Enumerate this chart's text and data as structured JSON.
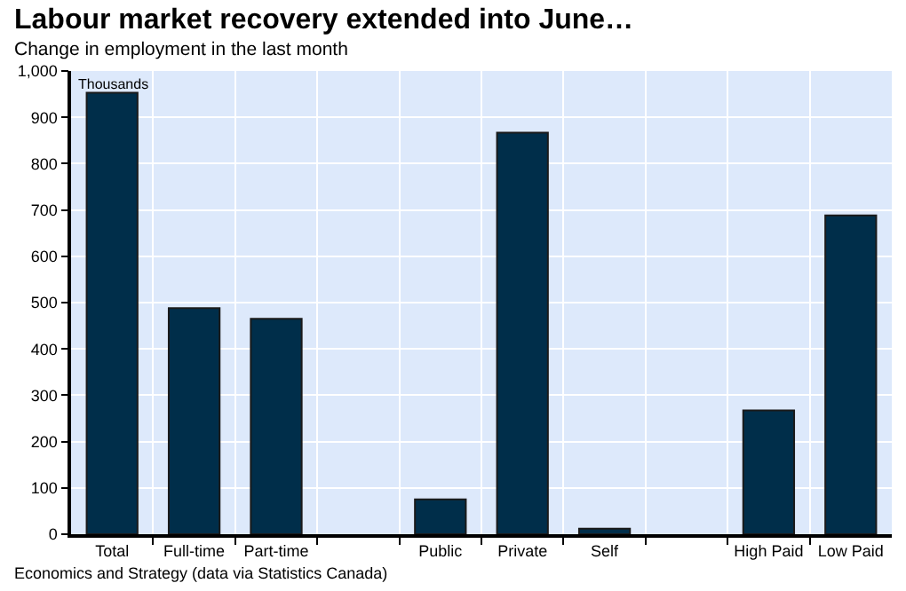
{
  "chart_data": {
    "type": "bar",
    "title": "Labour market recovery extended into June…",
    "subtitle": "Change in employment in the last month",
    "ylabel": "Thousands",
    "categories": [
      "Total",
      "Full-time",
      "Part-time",
      null,
      "Public",
      "Private",
      "Self",
      null,
      "High Paid",
      "Low Paid"
    ],
    "values": [
      953,
      488,
      465,
      null,
      75,
      867,
      12,
      null,
      267,
      688
    ],
    "color": "#002e4a",
    "ylim": [
      0,
      1000
    ],
    "yticks": [
      0,
      100,
      200,
      300,
      400,
      500,
      600,
      700,
      800,
      900,
      {
        "value": 1000,
        "label": "1,000"
      }
    ],
    "grid": true,
    "annotations": [
      "Economics and Strategy (data via Statistics Canada)"
    ]
  }
}
